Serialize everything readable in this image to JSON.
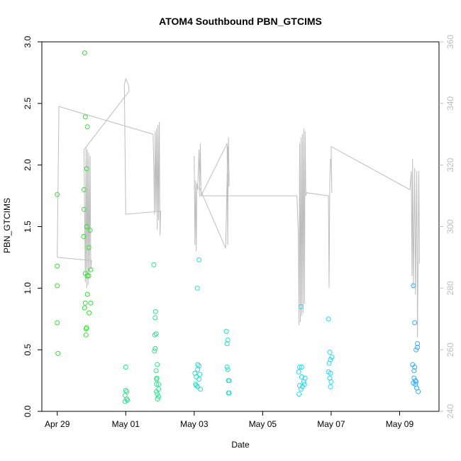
{
  "chart_data": {
    "type": "scatter",
    "title": "ATOM4 Southbound PBN_GTCIMS",
    "xlabel": "Date",
    "ylabel": "PBN_GTCIMS",
    "x_ticks": [
      "Apr 29",
      "May 01",
      "May 03",
      "May 05",
      "May 07",
      "May 09"
    ],
    "xlim_days": [
      -0.45,
      11.15
    ],
    "ylim": [
      0,
      3.0
    ],
    "y_ticks": [
      "0.0",
      "0.5",
      "1.0",
      "1.5",
      "2.0",
      "2.5",
      "3.0"
    ],
    "y2lim": [
      240,
      360
    ],
    "y2_ticks": [
      "240",
      "260",
      "280",
      "300",
      "320",
      "340",
      "360"
    ],
    "grid": false,
    "point_colors": {
      "early": "#33e033",
      "mid": "#22e0c8",
      "late": "#33aaff"
    },
    "line_color": "#bdbdbd",
    "series": [
      {
        "points": [
          {
            "x": 0.0,
            "y": 1.76
          },
          {
            "x": 0.0,
            "y": 1.18
          },
          {
            "x": 0.0,
            "y": 1.02
          },
          {
            "x": 0.0,
            "y": 0.72
          },
          {
            "x": 0.02,
            "y": 0.47
          },
          {
            "x": 0.8,
            "y": 2.91
          },
          {
            "x": 0.82,
            "y": 2.39
          },
          {
            "x": 0.88,
            "y": 2.31
          },
          {
            "x": 0.86,
            "y": 1.97
          },
          {
            "x": 0.78,
            "y": 1.8
          },
          {
            "x": 0.78,
            "y": 1.64
          },
          {
            "x": 0.86,
            "y": 1.5
          },
          {
            "x": 0.96,
            "y": 1.47
          },
          {
            "x": 0.77,
            "y": 1.42
          },
          {
            "x": 0.92,
            "y": 1.33
          },
          {
            "x": 0.98,
            "y": 1.15
          },
          {
            "x": 0.82,
            "y": 1.12
          },
          {
            "x": 0.88,
            "y": 1.1
          },
          {
            "x": 0.92,
            "y": 1.1
          },
          {
            "x": 0.88,
            "y": 0.95
          },
          {
            "x": 0.82,
            "y": 0.88
          },
          {
            "x": 0.98,
            "y": 0.88
          },
          {
            "x": 0.8,
            "y": 0.84
          },
          {
            "x": 0.93,
            "y": 0.8
          },
          {
            "x": 0.86,
            "y": 0.68
          },
          {
            "x": 0.84,
            "y": 0.67
          },
          {
            "x": 0.84,
            "y": 0.62
          },
          {
            "x": 2.0,
            "y": 0.36
          },
          {
            "x": 2.0,
            "y": 0.17
          },
          {
            "x": 2.03,
            "y": 0.16
          },
          {
            "x": 1.98,
            "y": 0.13
          },
          {
            "x": 2.03,
            "y": 0.1
          },
          {
            "x": 1.98,
            "y": 0.08
          },
          {
            "x": 2.05,
            "y": 0.09
          },
          {
            "x": 2.82,
            "y": 1.19
          },
          {
            "x": 2.87,
            "y": 0.81
          },
          {
            "x": 2.86,
            "y": 0.76
          },
          {
            "x": 2.89,
            "y": 0.63
          },
          {
            "x": 2.85,
            "y": 0.62
          },
          {
            "x": 2.86,
            "y": 0.51
          },
          {
            "x": 2.84,
            "y": 0.49
          },
          {
            "x": 2.92,
            "y": 0.38
          },
          {
            "x": 2.89,
            "y": 0.33
          },
          {
            "x": 2.91,
            "y": 0.27
          },
          {
            "x": 2.9,
            "y": 0.26
          },
          {
            "x": 2.96,
            "y": 0.22
          },
          {
            "x": 2.9,
            "y": 0.22
          },
          {
            "x": 2.96,
            "y": 0.18
          },
          {
            "x": 2.9,
            "y": 0.16
          },
          {
            "x": 2.92,
            "y": 0.14
          },
          {
            "x": 2.96,
            "y": 0.12
          },
          {
            "x": 2.93,
            "y": 0.1
          },
          {
            "x": 4.14,
            "y": 1.23
          },
          {
            "x": 4.09,
            "y": 1.0
          },
          {
            "x": 4.1,
            "y": 0.38
          },
          {
            "x": 4.14,
            "y": 0.37
          },
          {
            "x": 4.1,
            "y": 0.34
          },
          {
            "x": 4.02,
            "y": 0.31
          },
          {
            "x": 4.16,
            "y": 0.3
          },
          {
            "x": 4.06,
            "y": 0.28
          },
          {
            "x": 4.14,
            "y": 0.26
          },
          {
            "x": 4.04,
            "y": 0.22
          },
          {
            "x": 4.06,
            "y": 0.21
          },
          {
            "x": 4.1,
            "y": 0.2
          },
          {
            "x": 4.18,
            "y": 0.18
          },
          {
            "x": 4.94,
            "y": 0.65
          },
          {
            "x": 4.98,
            "y": 0.58
          },
          {
            "x": 4.96,
            "y": 0.55
          },
          {
            "x": 4.96,
            "y": 0.36
          },
          {
            "x": 4.98,
            "y": 0.34
          },
          {
            "x": 5.0,
            "y": 0.25
          },
          {
            "x": 5.02,
            "y": 0.25
          },
          {
            "x": 5.0,
            "y": 0.15
          },
          {
            "x": 5.02,
            "y": 0.15
          },
          {
            "x": 7.12,
            "y": 0.85
          },
          {
            "x": 7.08,
            "y": 0.36
          },
          {
            "x": 7.14,
            "y": 0.36
          },
          {
            "x": 7.05,
            "y": 0.32
          },
          {
            "x": 7.14,
            "y": 0.28
          },
          {
            "x": 7.24,
            "y": 0.27
          },
          {
            "x": 7.2,
            "y": 0.24
          },
          {
            "x": 7.22,
            "y": 0.22
          },
          {
            "x": 7.08,
            "y": 0.21
          },
          {
            "x": 7.16,
            "y": 0.2
          },
          {
            "x": 7.12,
            "y": 0.18
          },
          {
            "x": 7.06,
            "y": 0.14
          },
          {
            "x": 7.92,
            "y": 0.75
          },
          {
            "x": 7.96,
            "y": 0.48
          },
          {
            "x": 8.02,
            "y": 0.44
          },
          {
            "x": 7.98,
            "y": 0.42
          },
          {
            "x": 7.94,
            "y": 0.39
          },
          {
            "x": 7.92,
            "y": 0.32
          },
          {
            "x": 7.98,
            "y": 0.31
          },
          {
            "x": 7.96,
            "y": 0.27
          },
          {
            "x": 8.0,
            "y": 0.24
          },
          {
            "x": 7.98,
            "y": 0.2
          },
          {
            "x": 10.4,
            "y": 1.02
          },
          {
            "x": 10.44,
            "y": 0.72
          },
          {
            "x": 10.52,
            "y": 0.55
          },
          {
            "x": 10.52,
            "y": 0.52
          },
          {
            "x": 10.48,
            "y": 0.5
          },
          {
            "x": 10.38,
            "y": 0.38
          },
          {
            "x": 10.44,
            "y": 0.36
          },
          {
            "x": 10.42,
            "y": 0.33
          },
          {
            "x": 10.42,
            "y": 0.27
          },
          {
            "x": 10.46,
            "y": 0.25
          },
          {
            "x": 10.48,
            "y": 0.24
          },
          {
            "x": 10.4,
            "y": 0.23
          },
          {
            "x": 10.46,
            "y": 0.22
          },
          {
            "x": 10.5,
            "y": 0.19
          },
          {
            "x": 10.54,
            "y": 0.16
          }
        ]
      },
      {
        "axis": "right",
        "line": [
          [
            0.0,
            290
          ],
          [
            0.05,
            339
          ],
          [
            2.8,
            330
          ],
          [
            2.82,
            318
          ],
          [
            2.84,
            304
          ],
          [
            2.86,
            331
          ],
          [
            2.88,
            305
          ],
          [
            2.9,
            332
          ],
          [
            2.92,
            299
          ],
          [
            2.94,
            333
          ],
          [
            2.96,
            302
          ],
          [
            2.98,
            334
          ],
          [
            3.0,
            297
          ],
          [
            3.02,
            305
          ],
          [
            2.0,
            304
          ],
          [
            1.96,
            346
          ],
          [
            2.0,
            348
          ],
          [
            2.08,
            346
          ],
          [
            2.1,
            344
          ],
          [
            0.78,
            325
          ],
          [
            0.82,
            282
          ],
          [
            0.84,
            326
          ],
          [
            0.86,
            280
          ],
          [
            0.88,
            325
          ],
          [
            0.9,
            281
          ],
          [
            0.92,
            324
          ],
          [
            0.94,
            284
          ],
          [
            0.96,
            323
          ],
          [
            0.98,
            286
          ],
          [
            1.0,
            289
          ],
          [
            0.0,
            290
          ]
        ],
        "line2": [
          [
            4.0,
            323
          ],
          [
            4.02,
            294
          ],
          [
            4.04,
            315
          ],
          [
            4.06,
            292
          ],
          [
            4.08,
            314
          ],
          [
            4.1,
            312
          ],
          [
            4.14,
            325
          ],
          [
            4.16,
            313
          ],
          [
            4.18,
            327
          ],
          [
            4.2,
            310
          ],
          [
            4.96,
            327
          ],
          [
            4.98,
            294
          ],
          [
            5.0,
            329
          ],
          [
            5.02,
            313
          ],
          [
            4.98,
            326
          ],
          [
            4.92,
            293
          ],
          [
            4.14,
            313
          ],
          [
            4.16,
            310
          ],
          [
            7.0,
            310
          ],
          [
            7.04,
            298
          ],
          [
            7.06,
            268
          ],
          [
            7.08,
            327
          ],
          [
            7.1,
            269
          ],
          [
            7.12,
            329
          ],
          [
            7.14,
            271
          ],
          [
            7.16,
            330
          ],
          [
            7.18,
            272
          ],
          [
            7.2,
            332
          ],
          [
            7.22,
            275
          ],
          [
            7.24,
            331
          ],
          [
            7.26,
            310
          ],
          [
            7.28,
            311
          ],
          [
            7.92,
            310
          ],
          [
            7.94,
            280
          ],
          [
            7.96,
            315
          ],
          [
            7.98,
            322
          ],
          [
            8.0,
            322
          ],
          [
            8.02,
            311
          ],
          [
            8.0,
            326
          ],
          [
            10.3,
            312
          ],
          [
            10.34,
            318
          ],
          [
            10.36,
            284
          ],
          [
            10.38,
            322
          ],
          [
            10.4,
            280
          ],
          [
            10.44,
            319
          ],
          [
            10.46,
            278
          ],
          [
            10.5,
            318
          ],
          [
            10.52,
            264
          ],
          [
            10.56,
            318
          ],
          [
            10.58,
            288
          ]
        ]
      }
    ]
  }
}
